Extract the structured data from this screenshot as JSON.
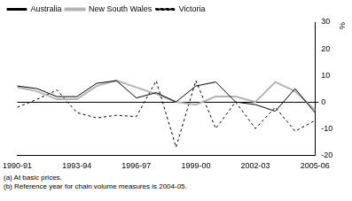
{
  "chart_data": {
    "type": "line",
    "categories": [
      "1990-91",
      null,
      null,
      "1993-94",
      null,
      null,
      "1996-97",
      null,
      null,
      "1999-00",
      null,
      null,
      "2002-03",
      null,
      null,
      "2005-06"
    ],
    "series": [
      {
        "name": "Australia",
        "color": "#000000",
        "line_style": "solid",
        "marker": "none",
        "values": [
          6,
          5,
          2,
          2,
          7,
          8,
          1.5,
          3.5,
          0,
          6,
          7.5,
          0,
          -1,
          -3.5,
          5,
          -4
        ]
      },
      {
        "name": "New South Wales",
        "color": "#b3b3b3",
        "line_style": "solid",
        "marker": "none",
        "values": [
          5.5,
          4,
          1,
          1,
          6,
          8,
          5.5,
          3,
          0,
          -1,
          2,
          2,
          0,
          7.5,
          4,
          -3
        ]
      },
      {
        "name": "Victoria",
        "color": "#000000",
        "line_style": "dashed",
        "marker": "none",
        "values": [
          -2,
          1,
          4.5,
          -4,
          -6,
          -5,
          -5.5,
          8,
          -17,
          8,
          -10,
          0,
          -10,
          -2,
          -11,
          -7
        ]
      }
    ],
    "y_label": "%",
    "ylim": [
      -20,
      30
    ],
    "yticks": [
      -20,
      -10,
      0,
      10,
      20,
      30
    ],
    "grid": false,
    "legend": "upper left",
    "footnotes": [
      "(a) At basic prices.",
      "(b) Reference year for chain volume measures is 2004-05."
    ]
  }
}
